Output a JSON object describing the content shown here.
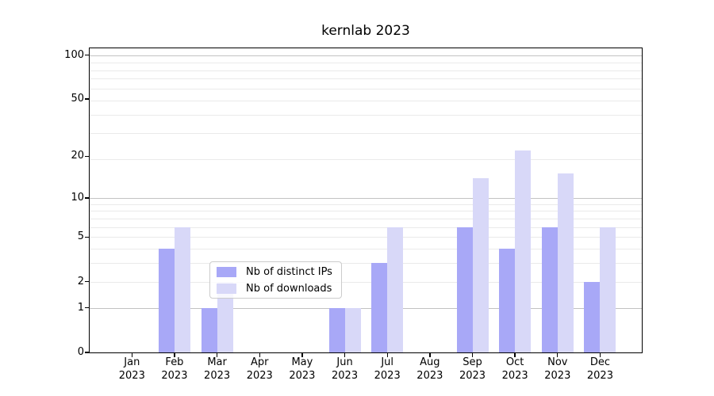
{
  "chart_data": {
    "type": "bar",
    "title": "kernlab 2023",
    "x_tick_months": [
      "Jan",
      "Feb",
      "Mar",
      "Apr",
      "May",
      "Jun",
      "Jul",
      "Aug",
      "Sep",
      "Oct",
      "Nov",
      "Dec"
    ],
    "x_tick_year": "2023",
    "y_ticks": [
      0,
      1,
      2,
      5,
      10,
      20,
      50,
      100
    ],
    "y_scale": "log1p",
    "ylim": [
      0,
      111
    ],
    "grid": {
      "major_values": [
        1,
        10,
        100
      ],
      "minor_values": [
        2,
        3,
        4,
        5,
        6,
        7,
        8,
        9,
        19,
        29,
        39,
        49,
        59,
        69,
        79,
        89
      ],
      "major_color": "#c2c2c2",
      "minor_color": "#eaeaea"
    },
    "spine_color": "#000000",
    "legend_position": "lower center",
    "series": [
      {
        "name": "Nb of distinct IPs",
        "color": "#a8a8f7",
        "values": [
          0,
          4,
          1,
          0,
          0,
          1,
          3,
          0,
          6,
          4,
          6,
          2
        ]
      },
      {
        "name": "Nb of downloads",
        "color": "#d8d8f8",
        "values": [
          0,
          6,
          2,
          0,
          0,
          1,
          6,
          0,
          14,
          22,
          15,
          6
        ]
      }
    ]
  }
}
